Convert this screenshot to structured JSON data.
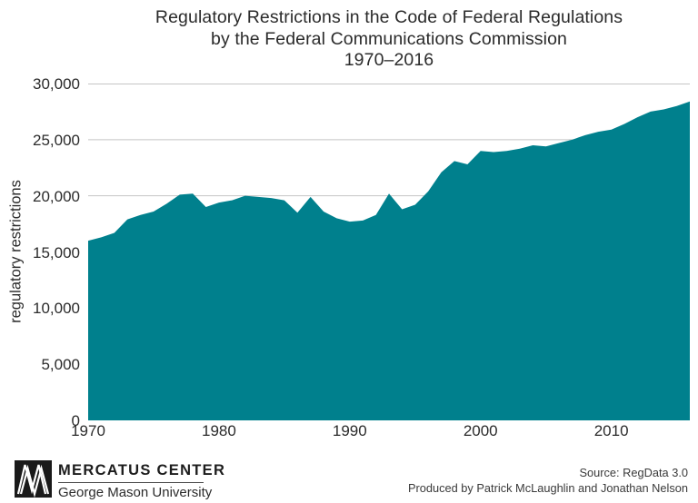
{
  "title": {
    "line1": "Regulatory Restrictions in the Code of Federal Regulations",
    "line2": "by the Federal Communications Commission",
    "line3": "1970–2016"
  },
  "y_axis": {
    "label": "regulatory restrictions",
    "ticks": [
      "30,000",
      "25,000",
      "20,000",
      "15,000",
      "10,000",
      "5,000",
      "0"
    ]
  },
  "x_axis": {
    "ticks": [
      "1970",
      "1980",
      "1990",
      "2000",
      "2010"
    ],
    "tick_years": [
      1970,
      1980,
      1990,
      2000,
      2010
    ]
  },
  "footer": {
    "logo_title": "MERCATUS CENTER",
    "logo_subtitle": "George Mason University",
    "source_line1": "Source: RegData 3.0",
    "source_line2": "Produced by Patrick McLaughlin and Jonathan Nelson"
  },
  "colors": {
    "area": "#00808D",
    "gridline": "#c5c5c5",
    "text": "#2b2b2b",
    "logo": "#1a1a1a"
  },
  "chart_data": {
    "type": "area",
    "title": "Regulatory Restrictions in the Code of Federal Regulations by the Federal Communications Commission 1970–2016",
    "xlabel": "",
    "ylabel": "regulatory restrictions",
    "ylim": [
      0,
      30000
    ],
    "xlim": [
      1970,
      2016
    ],
    "grid": "horizontal",
    "legend_position": "none",
    "years": [
      1970,
      1971,
      1972,
      1973,
      1974,
      1975,
      1976,
      1977,
      1978,
      1979,
      1980,
      1981,
      1982,
      1983,
      1984,
      1985,
      1986,
      1987,
      1988,
      1989,
      1990,
      1991,
      1992,
      1993,
      1994,
      1995,
      1996,
      1997,
      1998,
      1999,
      2000,
      2001,
      2002,
      2003,
      2004,
      2005,
      2006,
      2007,
      2008,
      2009,
      2010,
      2011,
      2012,
      2013,
      2014,
      2015,
      2016
    ],
    "values": [
      16000,
      16300,
      16700,
      17900,
      18300,
      18600,
      19300,
      20100,
      20200,
      19000,
      19400,
      19600,
      20000,
      19900,
      19800,
      19600,
      18500,
      19900,
      18600,
      18000,
      17700,
      17800,
      18300,
      20200,
      18800,
      19200,
      20400,
      22100,
      23100,
      22800,
      24000,
      23900,
      24000,
      24200,
      24500,
      24400,
      24700,
      25000,
      25400,
      25700,
      25900,
      26400,
      27000,
      27500,
      27700,
      28000,
      28400
    ]
  }
}
